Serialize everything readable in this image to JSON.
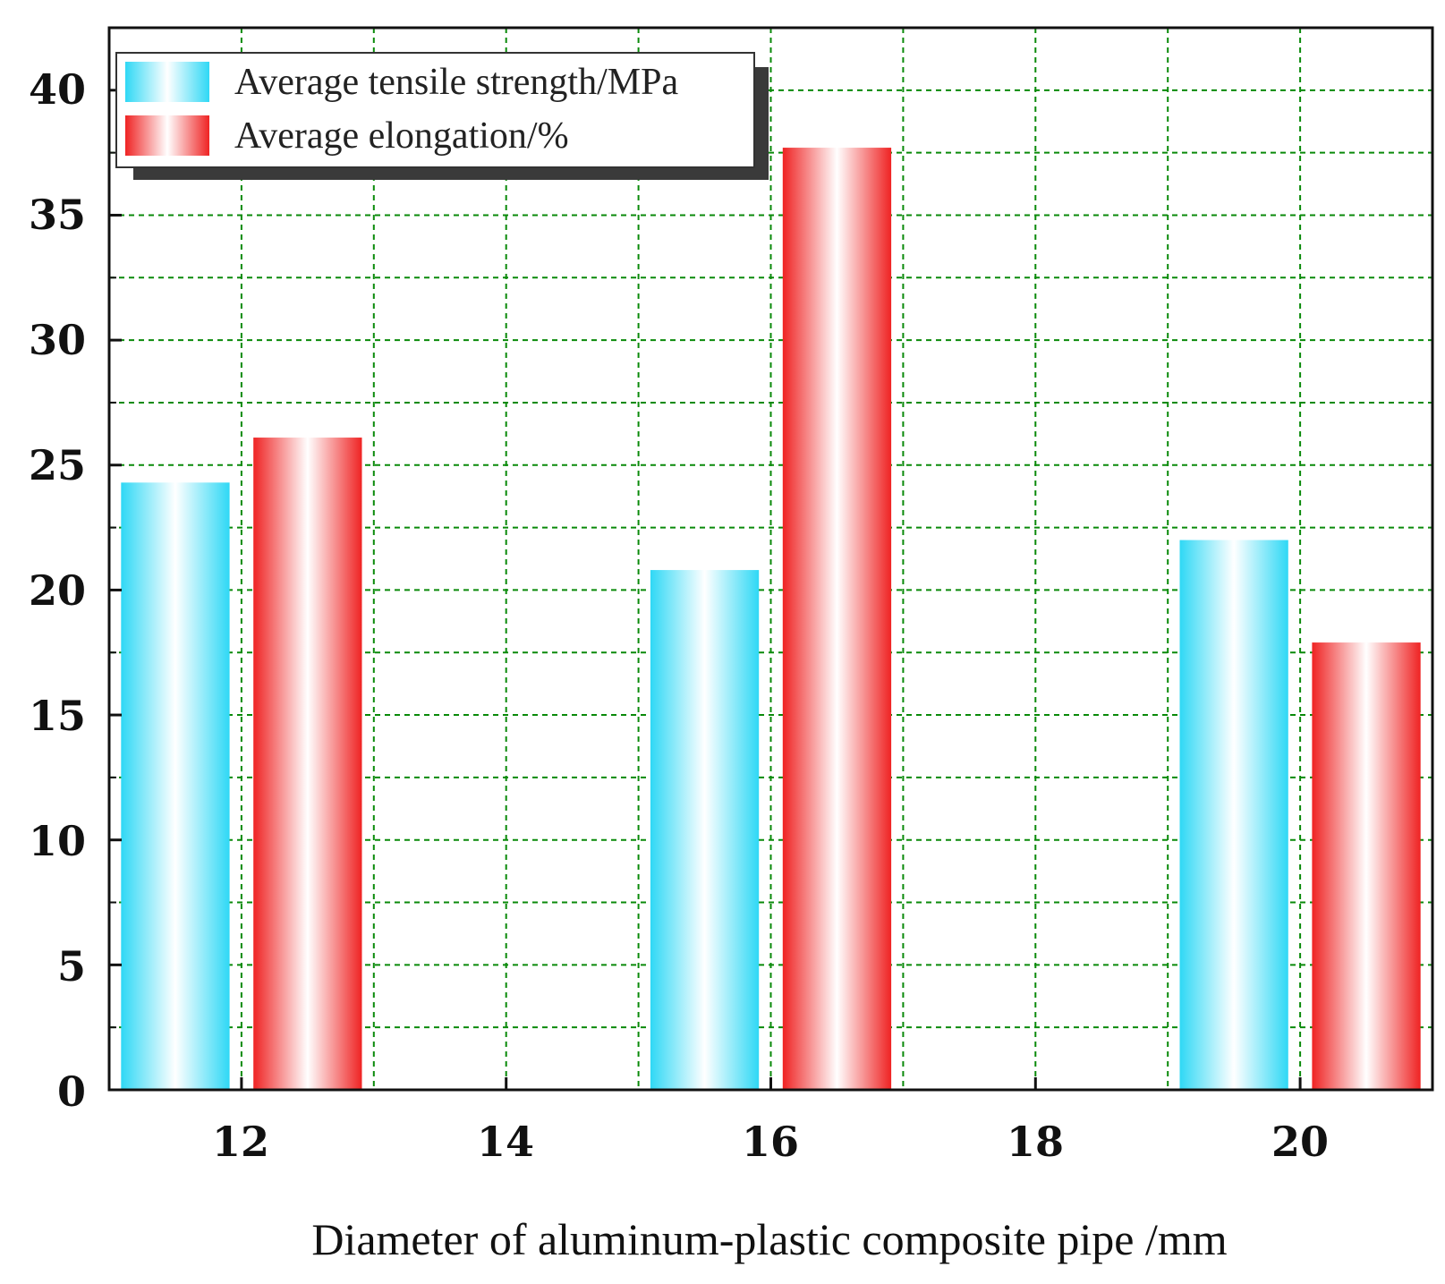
{
  "chart_data": {
    "type": "bar",
    "title": "",
    "xlabel": "Diameter of aluminum-plastic composite pipe /mm",
    "ylabel": "",
    "x_ticks": [
      "12",
      "14",
      "16",
      "18",
      "20"
    ],
    "y_ticks": [
      "0",
      "5",
      "10",
      "15",
      "20",
      "25",
      "30",
      "35",
      "40"
    ],
    "xlim": [
      11,
      21
    ],
    "ylim": [
      0,
      42.5
    ],
    "grid": true,
    "legend_position": "top-left",
    "categories": [
      "12",
      "16",
      "20"
    ],
    "series": [
      {
        "name": "Average tensile strength/MPa",
        "color": "#2fd8f5",
        "values": [
          24.3,
          20.8,
          22.0
        ]
      },
      {
        "name": "Average elongation/%",
        "color": "#ef2323",
        "values": [
          26.1,
          37.7,
          17.9
        ]
      }
    ],
    "grid_color": "#0a8a0a"
  }
}
